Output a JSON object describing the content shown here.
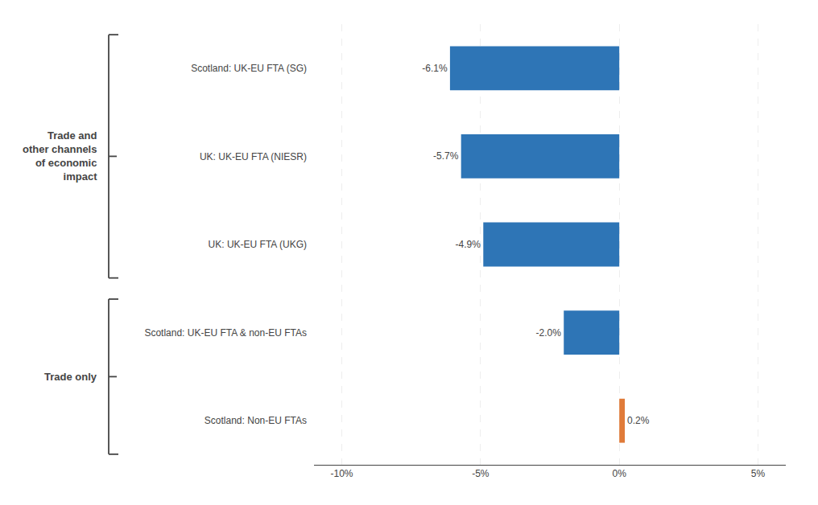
{
  "chart_data": {
    "type": "bar",
    "orientation": "horizontal",
    "categories": [
      "Scotland: UK-EU FTA (SG)",
      "UK: UK-EU FTA (NIESR)",
      "UK: UK-EU FTA (UKG)",
      "Scotland: UK-EU FTA & non-EU FTAs",
      "Scotland: Non-EU FTAs"
    ],
    "values": [
      -6.1,
      -5.7,
      -4.9,
      -2.0,
      0.2
    ],
    "value_labels": [
      "-6.1%",
      "-5.7%",
      "-4.9%",
      "-2.0%",
      "0.2%"
    ],
    "colors": [
      "#2e75b6",
      "#2e75b6",
      "#2e75b6",
      "#2e75b6",
      "#e07b39"
    ],
    "data_labels": true,
    "xlim": [
      -11,
      6
    ],
    "xticks": [
      {
        "value": -10,
        "label": "-10%"
      },
      {
        "value": -5,
        "label": "-5%"
      },
      {
        "value": 0,
        "label": "0%"
      },
      {
        "value": 5,
        "label": "5%"
      }
    ],
    "grid": true,
    "annotations": [
      {
        "text": "Trade and\nother channels\nof economic\nimpact",
        "categories": [
          "Scotland: UK-EU FTA (SG)",
          "UK: UK-EU FTA (NIESR)",
          "UK: UK-EU FTA (UKG)"
        ]
      },
      {
        "text": "Trade only",
        "categories": [
          "Scotland: UK-EU FTA & non-EU FTAs",
          "Scotland: Non-EU FTAs"
        ]
      }
    ]
  }
}
